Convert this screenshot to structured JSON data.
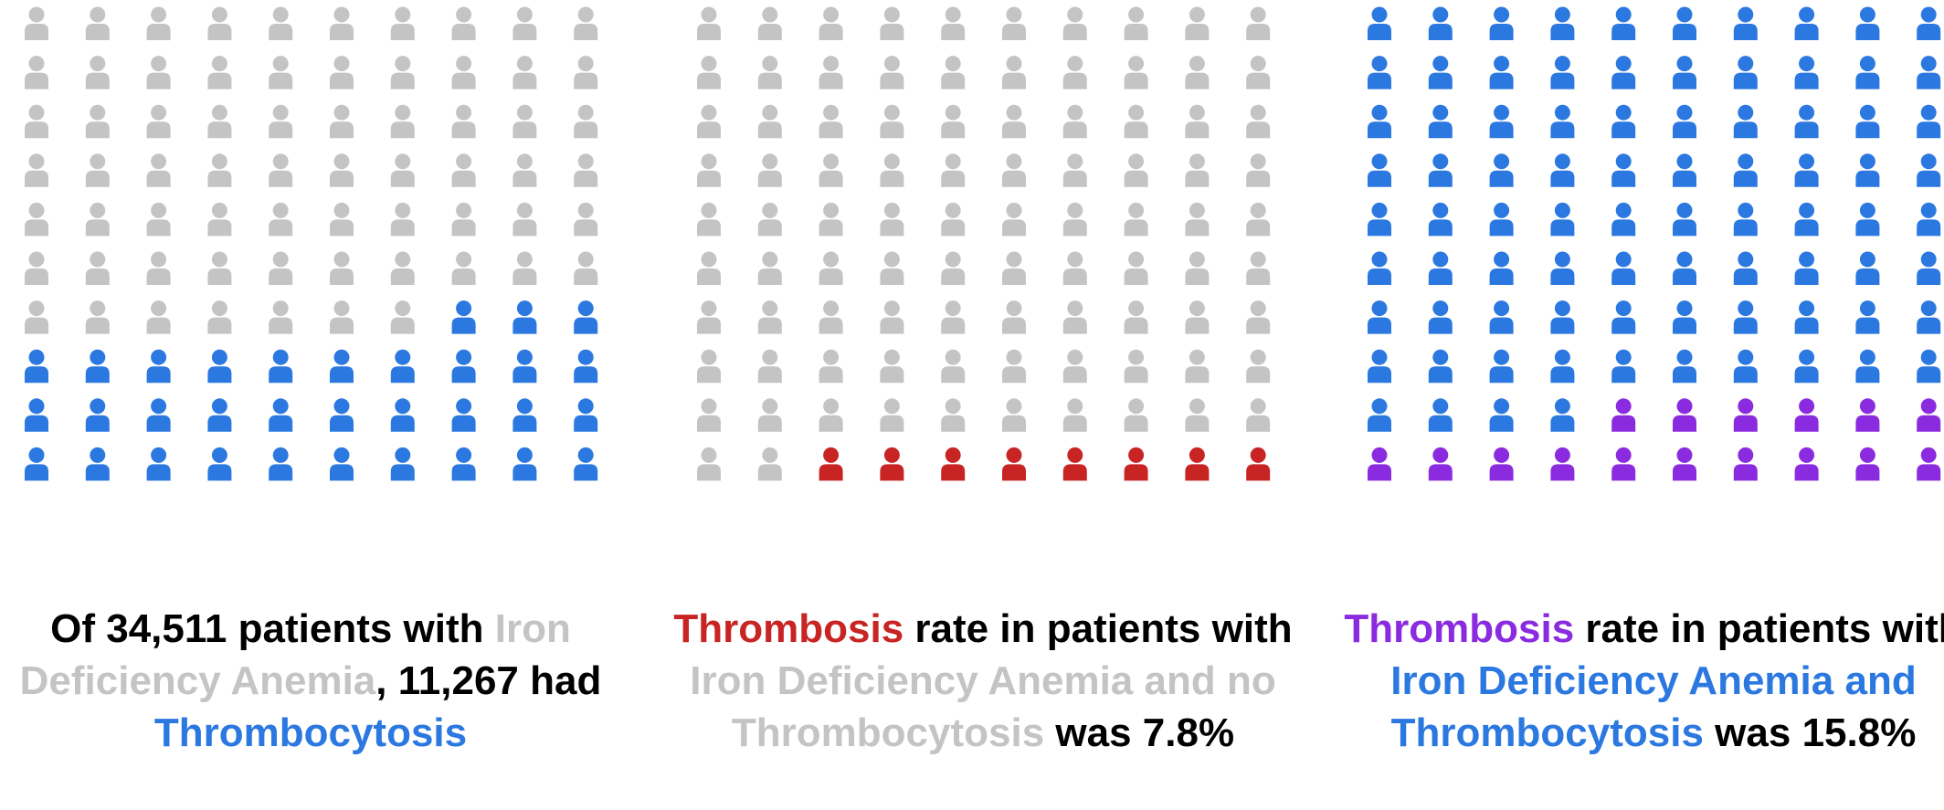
{
  "colors": {
    "gray": "#c4c4c4",
    "blue": "#2b78e0",
    "red": "#c92424",
    "purple": "#8b2be0",
    "text": "#000000"
  },
  "panels": [
    {
      "icon": "person-icon",
      "grid": {
        "rows": 10,
        "cols": 10
      },
      "counts": [
        {
          "color": "gray",
          "count": 67
        },
        {
          "color": "blue",
          "count": 33
        }
      ],
      "caption": [
        {
          "text": "Of 34,511 patients with ",
          "color": "text"
        },
        {
          "text": "Iron Deficiency Anemia",
          "color": "gray"
        },
        {
          "text": ", 11,267 had ",
          "color": "text"
        },
        {
          "text": "Thrombocytosis",
          "color": "blue"
        }
      ]
    },
    {
      "icon": "person-icon",
      "grid": {
        "rows": 10,
        "cols": 10
      },
      "counts": [
        {
          "color": "gray",
          "count": 92
        },
        {
          "color": "red",
          "count": 8
        }
      ],
      "caption": [
        {
          "text": "Thrombosis",
          "color": "red"
        },
        {
          "text": " rate in patients with ",
          "color": "text"
        },
        {
          "text": "Iron Deficiency Anemia and no Thrombocytosis",
          "color": "gray"
        },
        {
          "text": " was 7.8%",
          "color": "text"
        }
      ]
    },
    {
      "icon": "person-icon",
      "grid": {
        "rows": 10,
        "cols": 10
      },
      "counts": [
        {
          "color": "blue",
          "count": 84
        },
        {
          "color": "purple",
          "count": 16
        }
      ],
      "caption": [
        {
          "text": "Thrombosis",
          "color": "purple"
        },
        {
          "text": " rate in patients with ",
          "color": "text"
        },
        {
          "text": "Iron Deficiency Anemia and Thrombocytosis",
          "color": "blue"
        },
        {
          "text": " was 15.8%",
          "color": "text"
        }
      ]
    }
  ]
}
